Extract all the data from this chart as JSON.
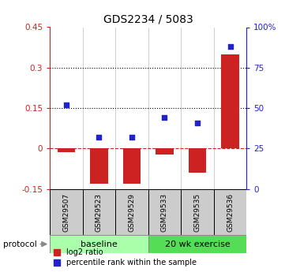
{
  "title": "GDS2234 / 5083",
  "samples": [
    "GSM29507",
    "GSM29523",
    "GSM29529",
    "GSM29533",
    "GSM29535",
    "GSM29536"
  ],
  "log2_ratio": [
    -0.012,
    -0.13,
    -0.13,
    -0.022,
    -0.09,
    0.35
  ],
  "percentile": [
    52,
    32,
    32,
    44,
    41,
    88
  ],
  "n_baseline": 3,
  "n_exercise": 3,
  "baseline_label": "baseline",
  "exercise_label": "20 wk exercise",
  "protocol_label": "protocol",
  "ylim_left": [
    -0.15,
    0.45
  ],
  "ylim_right": [
    0,
    100
  ],
  "left_yticks": [
    -0.15,
    0,
    0.15,
    0.3,
    0.45
  ],
  "right_yticks": [
    0,
    25,
    50,
    75,
    100
  ],
  "left_ytick_labels": [
    "-0.15",
    "0",
    "0.15",
    "0.3",
    "0.45"
  ],
  "right_ytick_labels": [
    "0",
    "25",
    "50",
    "75",
    "100%"
  ],
  "hlines": [
    0.0,
    0.15,
    0.3
  ],
  "hline_styles": [
    "dashed",
    "dotted",
    "dotted"
  ],
  "hline_colors": [
    "#cc2222",
    "#000000",
    "#000000"
  ],
  "bar_color": "#cc2222",
  "dot_color": "#2222cc",
  "baseline_color": "#aaffaa",
  "exercise_color": "#55dd55",
  "sample_box_color": "#cccccc",
  "legend_bar_label": "log2 ratio",
  "legend_dot_label": "percentile rank within the sample",
  "bar_width": 0.55
}
